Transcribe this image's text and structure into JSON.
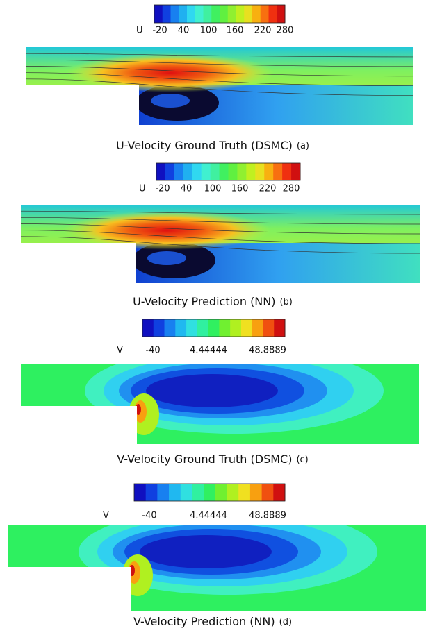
{
  "panels": [
    {
      "colorbar": {
        "variable": "U",
        "labels": [
          "-20",
          "40",
          "100",
          "160",
          "220",
          "280"
        ]
      },
      "caption": "U-Velocity Ground Truth (DSMC)",
      "tag": "(a)"
    },
    {
      "colorbar": {
        "variable": "U",
        "labels": [
          "-20",
          "40",
          "100",
          "160",
          "220",
          "280"
        ]
      },
      "caption": "U-Velocity Prediction (NN)",
      "tag": "(b)"
    },
    {
      "colorbar": {
        "variable": "V",
        "labels": [
          "-40",
          "4.44444",
          "48.8889"
        ]
      },
      "caption": "V-Velocity Ground Truth (DSMC)",
      "tag": "(c)"
    },
    {
      "colorbar": {
        "variable": "V",
        "labels": [
          "-40",
          "4.44444",
          "48.8889"
        ]
      },
      "caption": "V-Velocity Prediction (NN)",
      "tag": "(d)"
    }
  ]
}
